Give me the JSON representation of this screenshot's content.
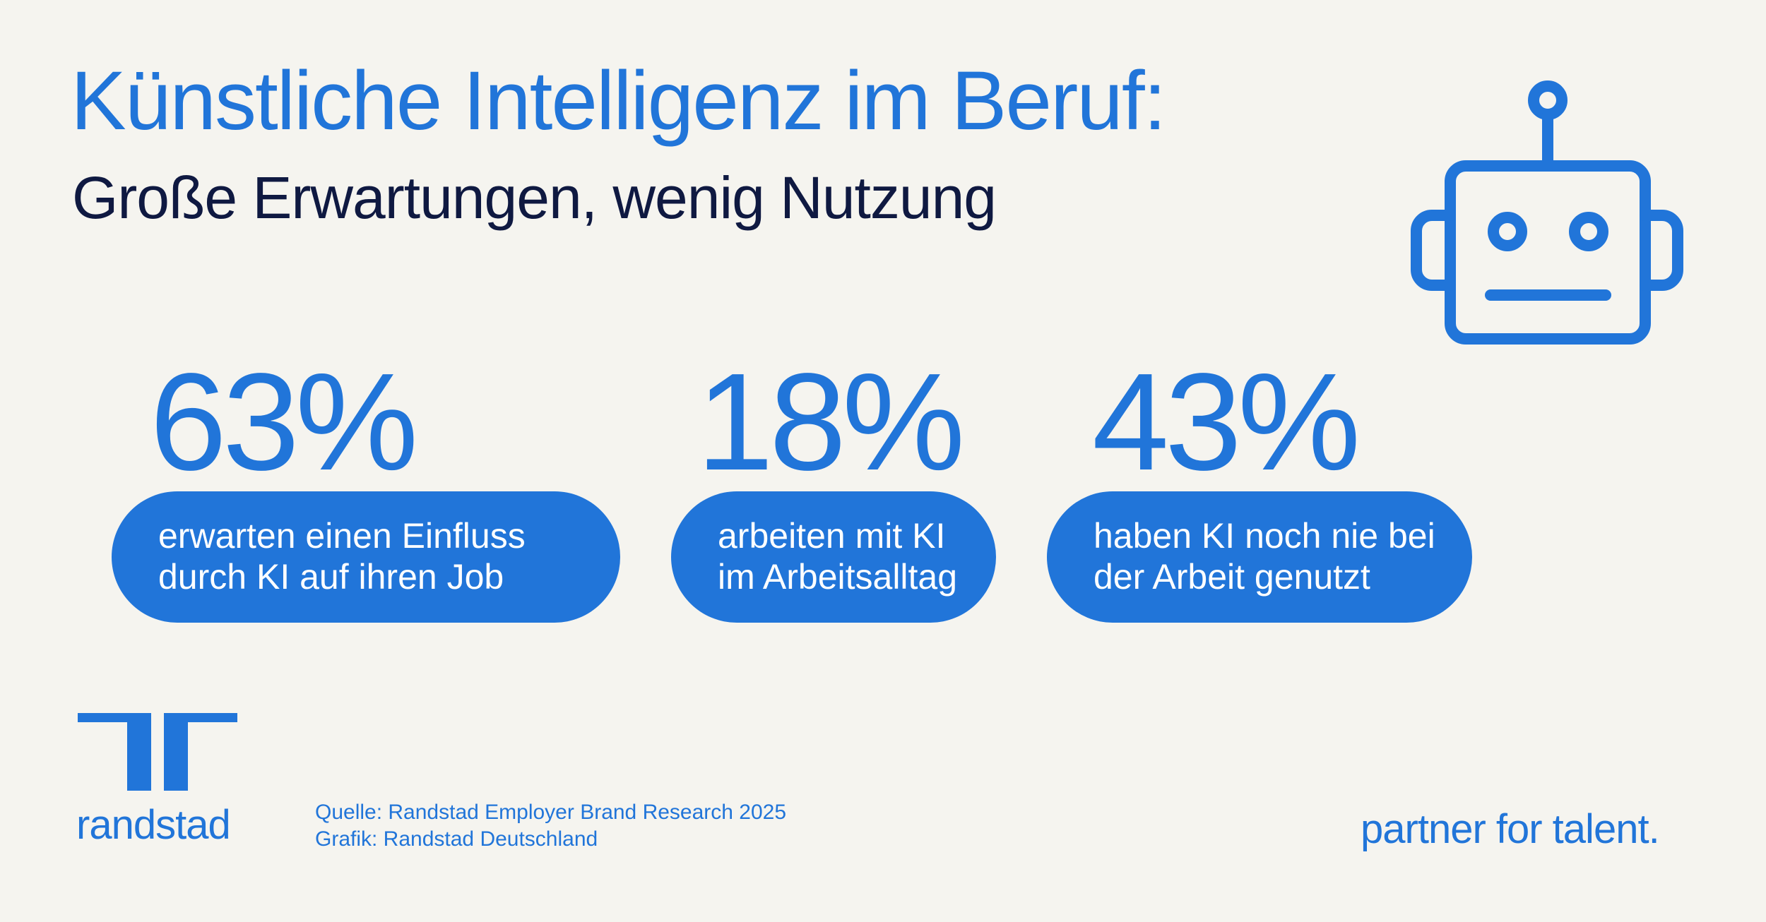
{
  "header": {
    "title": "Künstliche Intelligenz im Beruf:",
    "subtitle": "Große Erwartungen, wenig Nutzung"
  },
  "icon": "robot-icon",
  "stats": [
    {
      "value": "63%",
      "line1": "erwarten einen Einfluss",
      "line2": "durch KI auf ihren Job"
    },
    {
      "value": "18%",
      "line1": "arbeiten mit KI",
      "line2": "im Arbeitsalltag"
    },
    {
      "value": "43%",
      "line1": "haben KI noch nie bei",
      "line2": "der Arbeit genutzt"
    }
  ],
  "footer": {
    "logo_text": "randstad",
    "source_line1": "Quelle: Randstad Employer Brand Research 2025",
    "source_line2": "Grafik: Randstad Deutschland",
    "tagline": "partner for talent."
  },
  "colors": {
    "background": "#f5f4ef",
    "accent": "#2175d9",
    "dark": "#0f1941",
    "pill_text": "#ffffff"
  }
}
